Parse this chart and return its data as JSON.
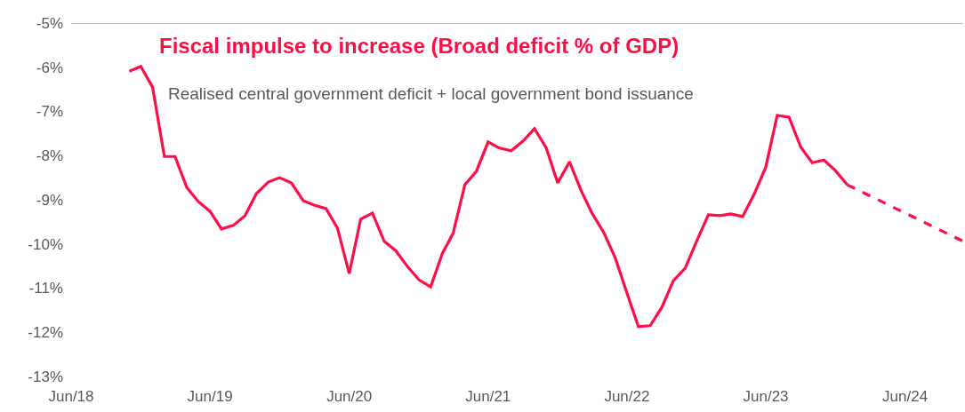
{
  "chart_data": {
    "type": "line",
    "title": "Fiscal impulse to increase (Broad deficit % of GDP)",
    "subtitle": "Realised central government deficit + local government bond issuance",
    "x": [
      "2018-11",
      "2018-12",
      "2019-01",
      "2019-02",
      "2019-03",
      "2019-04",
      "2019-05",
      "2019-06",
      "2019-07",
      "2019-08",
      "2019-09",
      "2019-10",
      "2019-11",
      "2019-12",
      "2020-01",
      "2020-02",
      "2020-03",
      "2020-04",
      "2020-05",
      "2020-06",
      "2020-07",
      "2020-08",
      "2020-09",
      "2020-10",
      "2020-11",
      "2020-12",
      "2021-01",
      "2021-02",
      "2021-03",
      "2021-04",
      "2021-05",
      "2021-06",
      "2021-07",
      "2021-08",
      "2021-09",
      "2021-10",
      "2021-11",
      "2021-12",
      "2022-01",
      "2022-02",
      "2022-03",
      "2022-04",
      "2022-05",
      "2022-06",
      "2022-07",
      "2022-08",
      "2022-09",
      "2022-10",
      "2022-11",
      "2022-12",
      "2023-01",
      "2023-02",
      "2023-03",
      "2023-04",
      "2023-05",
      "2023-06",
      "2023-07",
      "2023-08",
      "2023-09",
      "2023-10",
      "2023-11",
      "2023-12",
      "2024-01"
    ],
    "series": [
      {
        "color": "#ff0d47",
        "line_style": "solid",
        "values": [
          -6.09,
          -5.98,
          -6.45,
          -8.02,
          -8.02,
          -8.72,
          -9.04,
          -9.26,
          -9.66,
          -9.58,
          -9.36,
          -8.86,
          -8.6,
          -8.5,
          -8.62,
          -9.02,
          -9.12,
          -9.2,
          -9.64,
          -10.67,
          -9.44,
          -9.3,
          -9.94,
          -10.15,
          -10.51,
          -10.81,
          -10.97,
          -10.21,
          -9.76,
          -8.66,
          -8.36,
          -7.69,
          -7.83,
          -7.89,
          -7.67,
          -7.39,
          -7.83,
          -8.62,
          -8.14,
          -8.8,
          -9.3,
          -9.74,
          -10.31,
          -11.11,
          -11.87,
          -11.85,
          -11.43,
          -10.83,
          -10.55,
          -9.94,
          -9.34,
          -9.36,
          -9.32,
          -9.38,
          -8.88,
          -8.26,
          -7.09,
          -7.13,
          -7.81,
          -8.16,
          -8.1,
          -8.34,
          -8.66
        ]
      },
      {
        "color": "#ff0d47",
        "line_style": "dashed",
        "x": [
          "2024-01",
          "2024-11"
        ],
        "values": [
          -8.66,
          -9.94
        ]
      }
    ],
    "xlim": [
      "2018-06",
      "2024-11"
    ],
    "xticks": [
      {
        "value": "2018-06",
        "label": "Jun/18"
      },
      {
        "value": "2019-06",
        "label": "Jun/19"
      },
      {
        "value": "2020-06",
        "label": "Jun/20"
      },
      {
        "value": "2021-06",
        "label": "Jun/21"
      },
      {
        "value": "2022-06",
        "label": "Jun/22"
      },
      {
        "value": "2023-06",
        "label": "Jun/23"
      },
      {
        "value": "2024-06",
        "label": "Jun/24"
      }
    ],
    "ylim": [
      -13,
      -5
    ],
    "yticks": [
      {
        "value": -5,
        "label": "-5%"
      },
      {
        "value": -6,
        "label": "-6%"
      },
      {
        "value": -7,
        "label": "-7%"
      },
      {
        "value": -8,
        "label": "-8%"
      },
      {
        "value": -9,
        "label": "-9%"
      },
      {
        "value": -10,
        "label": "-10%"
      },
      {
        "value": -11,
        "label": "-11%"
      },
      {
        "value": -12,
        "label": "-12%"
      },
      {
        "value": -13,
        "label": "-13%"
      }
    ],
    "ref_lines": [
      {
        "axis": "y",
        "value": -5,
        "color": "#808080"
      }
    ],
    "grid": false,
    "marker": "none"
  }
}
